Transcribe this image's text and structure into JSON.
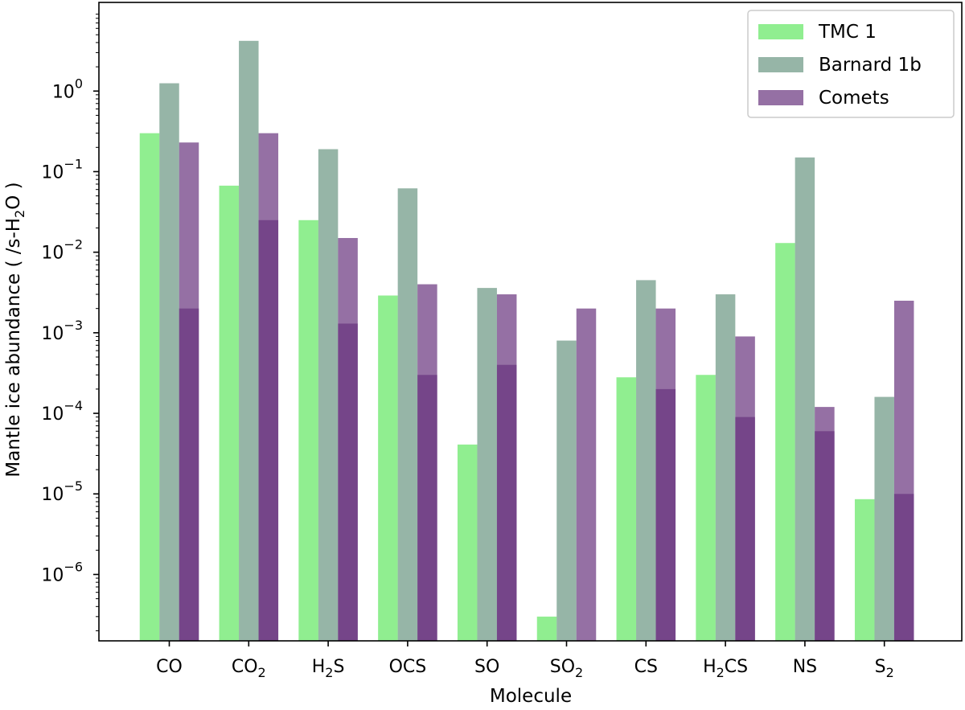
{
  "chart_data": {
    "type": "bar",
    "title": "",
    "xlabel": "Molecule",
    "ylabel": {
      "prefix": "Mantle ice abundance ( /s-H",
      "sub": "2",
      "suffix": "O )"
    },
    "yscale": "log",
    "ylim": [
      1.5e-07,
      12.6
    ],
    "yticks": [
      {
        "value": 1,
        "base": "10",
        "exp": "0"
      },
      {
        "value": 0.1,
        "base": "10",
        "exp": "−1"
      },
      {
        "value": 0.01,
        "base": "10",
        "exp": "−2"
      },
      {
        "value": 0.001,
        "base": "10",
        "exp": "−3"
      },
      {
        "value": 0.0001,
        "base": "10",
        "exp": "−4"
      },
      {
        "value": 1e-05,
        "base": "10",
        "exp": "−5"
      },
      {
        "value": 1e-06,
        "base": "10",
        "exp": "−6"
      }
    ],
    "categories": [
      {
        "label": "CO",
        "main": "CO",
        "sub": "",
        "tail": ""
      },
      {
        "label": "CO2",
        "main": "CO",
        "sub": "2",
        "tail": ""
      },
      {
        "label": "H2S",
        "main": "H",
        "sub": "2",
        "tail": "S"
      },
      {
        "label": "OCS",
        "main": "OCS",
        "sub": "",
        "tail": ""
      },
      {
        "label": "SO",
        "main": "SO",
        "sub": "",
        "tail": ""
      },
      {
        "label": "SO2",
        "main": "SO",
        "sub": "2",
        "tail": ""
      },
      {
        "label": "CS",
        "main": "CS",
        "sub": "",
        "tail": ""
      },
      {
        "label": "H2CS",
        "main": "H",
        "sub": "2",
        "tail": "CS"
      },
      {
        "label": "NS",
        "main": "NS",
        "sub": "",
        "tail": ""
      },
      {
        "label": "S2",
        "main": "S",
        "sub": "2",
        "tail": ""
      }
    ],
    "series": [
      {
        "name": "TMC 1",
        "color": "#90ee90",
        "opacity": 1,
        "values": [
          0.3,
          0.067,
          0.025,
          0.0029,
          4.1e-05,
          3e-07,
          0.00028,
          0.0003,
          0.013,
          8.6e-06
        ]
      },
      {
        "name": "Barnard 1b",
        "color": "#2e6b4f",
        "opacity": 0.5,
        "values": [
          1.25,
          4.2,
          0.19,
          0.062,
          0.0036,
          0.0008,
          0.0045,
          0.003,
          0.15,
          0.00016
        ]
      },
      {
        "name": "Comets",
        "color": "#68337e",
        "opacity": 0.7,
        "type": "range",
        "low": [
          0.002,
          0.025,
          0.0013,
          0.0003,
          0.0004,
          0.002,
          0.0002,
          9e-05,
          6e-05,
          1e-05
        ],
        "high": [
          0.23,
          0.3,
          0.015,
          0.004,
          0.003,
          0.002,
          0.002,
          0.0009,
          0.00012,
          0.0025
        ]
      }
    ],
    "legend_position": "top-right",
    "grid": false
  }
}
